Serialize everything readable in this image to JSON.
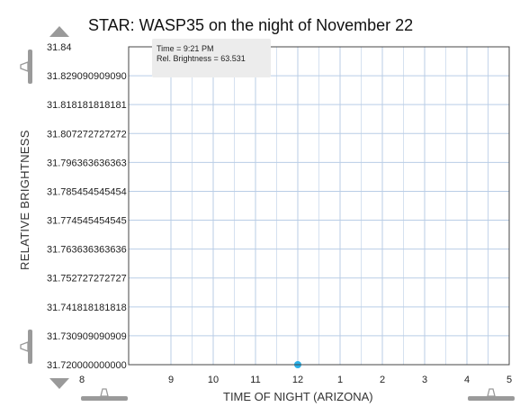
{
  "title": "STAR: WASP35 on the night of November 22",
  "axes": {
    "ylabel": "RELATIVE BRIGHTNESS",
    "xlabel": "TIME OF NIGHT (ARIZONA)"
  },
  "tooltip": {
    "time_line": "Time = 9:21 PM",
    "brightness_line": "Rel. Brightness = 63.531"
  },
  "colors": {
    "point": "#2ab0e8",
    "grid": "#b9cde6",
    "controls": "#9a9a9a"
  },
  "controls": {
    "y_scroll_up": "triangle-up-icon",
    "y_scroll_down": "triangle-down-icon",
    "y_top_slider": "slider-handle-icon",
    "y_bottom_slider": "slider-handle-icon",
    "x_left_slider": "slider-handle-icon",
    "x_right_slider": "slider-handle-icon"
  },
  "chart_data": {
    "type": "scatter",
    "title": "STAR: WASP35 on the night of November 22",
    "xlabel": "TIME OF NIGHT (ARIZONA)",
    "ylabel": "RELATIVE BRIGHTNESS",
    "x_ticks": [
      "8",
      "9",
      "10",
      "11",
      "12",
      "1",
      "2",
      "3",
      "4",
      "5"
    ],
    "y_ticks": [
      "31.84",
      "31.829090909090",
      "31.818181818181",
      "31.807272727272",
      "31.796363636363",
      "31.785454545454",
      "31.774545454545",
      "31.763636363636",
      "31.752727272727",
      "31.741818181818",
      "31.730909090909",
      "31.720000000000"
    ],
    "ylim": [
      31.72,
      31.84
    ],
    "xlim_hours": [
      8,
      17
    ],
    "grid": true,
    "points": [
      {
        "x_hours": 9.25,
        "y": 31.84
      },
      {
        "x_hours": 12.0,
        "y": 31.72
      }
    ]
  }
}
